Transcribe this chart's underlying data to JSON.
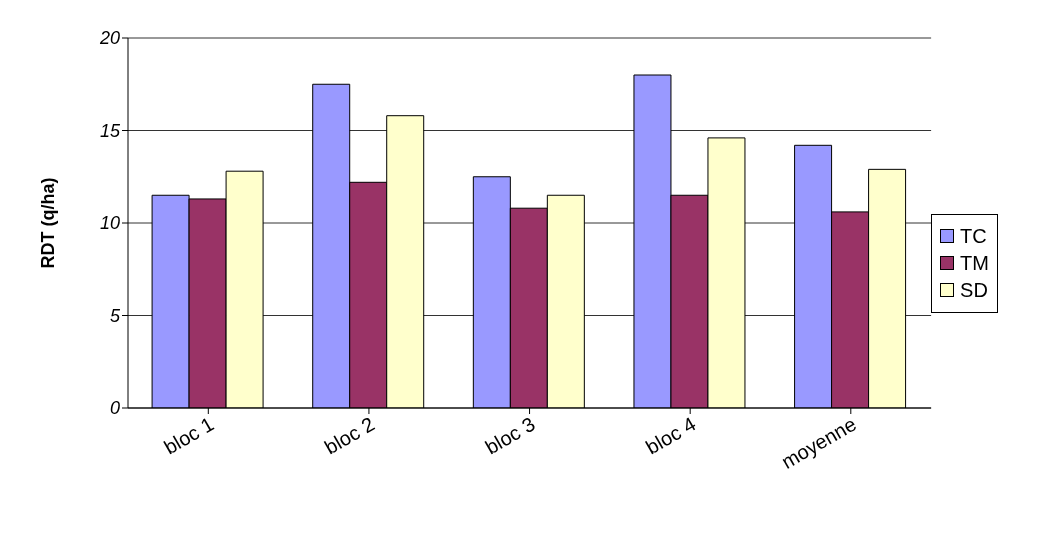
{
  "chart_data": {
    "type": "bar",
    "ylabel": "RDT (q/ha)",
    "categories": [
      "bloc 1",
      "bloc 2",
      "bloc 3",
      "bloc 4",
      "moyenne"
    ],
    "series": [
      {
        "name": "TC",
        "color": "#9999ff",
        "values": [
          11.5,
          17.5,
          12.5,
          18,
          14.2
        ]
      },
      {
        "name": "TM",
        "color": "#993366",
        "values": [
          11.3,
          12.2,
          10.8,
          11.5,
          10.6
        ]
      },
      {
        "name": "SD",
        "color": "#ffffcc",
        "values": [
          12.8,
          15.8,
          11.5,
          14.6,
          12.9
        ]
      }
    ],
    "ylim": [
      0,
      20
    ],
    "yticks": [
      0,
      5,
      10,
      15,
      20
    ],
    "grid": "y",
    "legend": "right"
  }
}
